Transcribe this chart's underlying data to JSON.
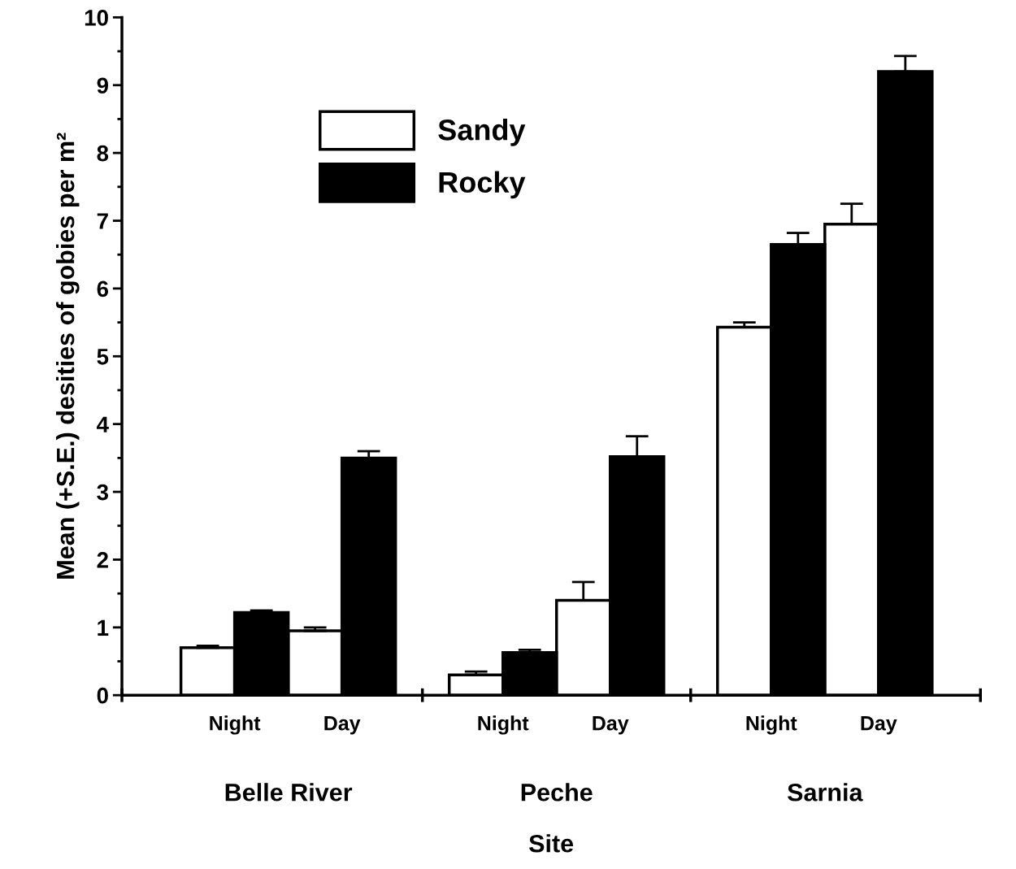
{
  "chart_data": {
    "type": "bar",
    "categories": [
      "Night",
      "Day",
      "Night",
      "Day",
      "Night",
      "Day"
    ],
    "series": [
      {
        "name": "Sandy",
        "color": "#ffffff",
        "values": [
          0.7,
          0.95,
          0.3,
          1.4,
          5.43,
          6.95
        ],
        "errors": [
          0.03,
          0.05,
          0.05,
          0.27,
          0.07,
          0.3
        ]
      },
      {
        "name": "Rocky",
        "color": "#000000",
        "values": [
          1.22,
          3.5,
          0.63,
          3.52,
          6.65,
          9.2
        ],
        "errors": [
          0.03,
          0.1,
          0.04,
          0.3,
          0.17,
          0.23
        ]
      }
    ],
    "xlabel": "Site",
    "ylabel": "Mean (+S.E.) desities of gobies per m²",
    "annotations": [
      "Belle River",
      "Peche",
      "Sarnia"
    ],
    "ylim": [
      0,
      10
    ],
    "yticks": [
      0,
      1,
      2,
      3,
      4,
      5,
      6,
      7,
      8,
      9,
      10
    ],
    "legend": "top left",
    "grid": false
  }
}
